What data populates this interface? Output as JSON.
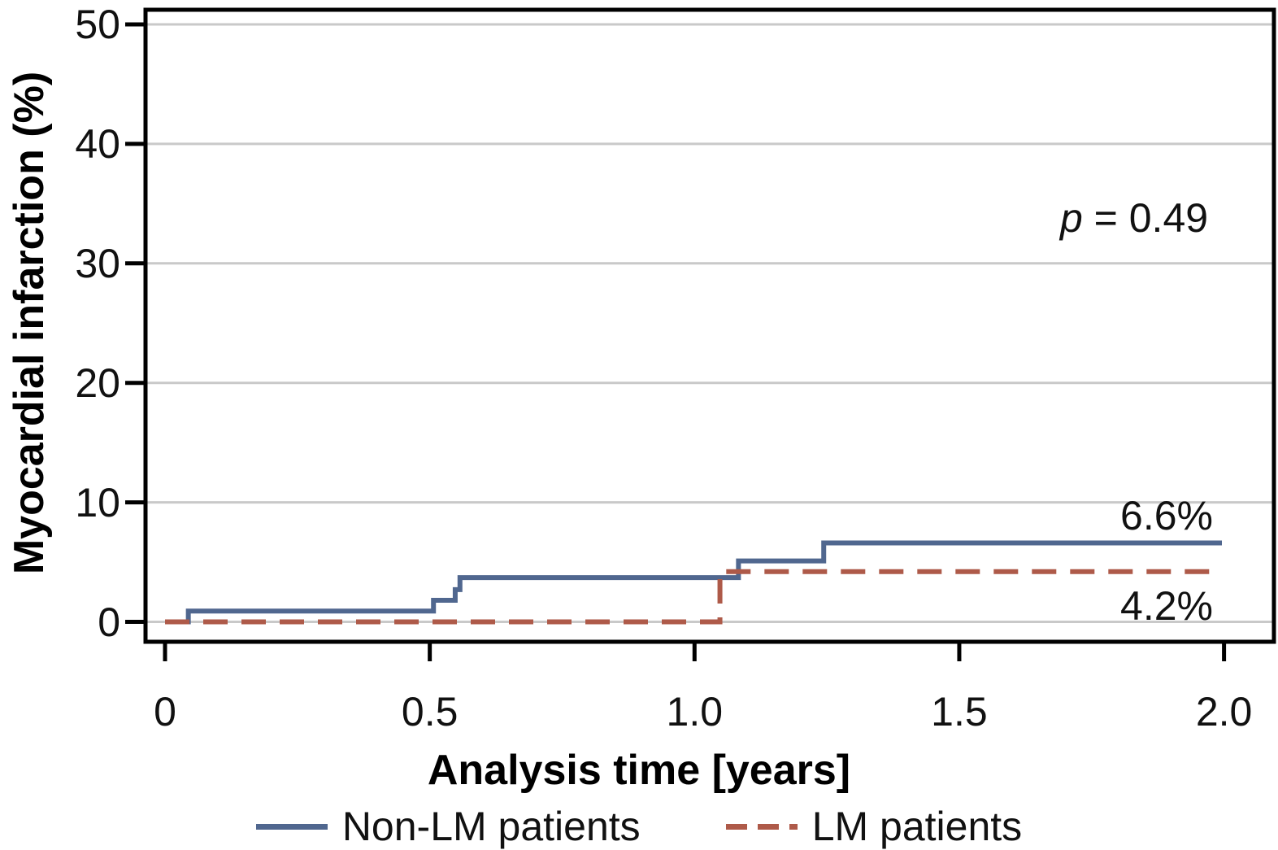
{
  "chart_data": {
    "type": "line",
    "variant": "kaplan-meier-step",
    "title": "",
    "xlabel": "Analysis time [years]",
    "ylabel": "Myocardial infarction (%)",
    "xlim": [
      0,
      2
    ],
    "ylim": [
      0,
      50
    ],
    "grid": true,
    "framed": true,
    "legend_position": "bottom",
    "x_tick_values": [
      0,
      0.5,
      1.0,
      1.5,
      2.0
    ],
    "x_tick_labels": [
      "0",
      "0.5",
      "1.0",
      "1.5",
      "2.0"
    ],
    "y_tick_values": [
      0,
      10,
      20,
      30,
      40,
      50
    ],
    "y_tick_labels": [
      "0",
      "10",
      "20",
      "30",
      "40",
      "50"
    ],
    "series": [
      {
        "name": "Non-LM patients",
        "color": "#50678f",
        "line_style": "solid",
        "end_value_pct": 6.6,
        "points": [
          [
            0,
            0
          ],
          [
            0.044,
            0
          ],
          [
            0.044,
            0.9
          ],
          [
            0.507,
            0.9
          ],
          [
            0.507,
            1.8
          ],
          [
            0.548,
            1.8
          ],
          [
            0.548,
            2.7
          ],
          [
            0.557,
            2.7
          ],
          [
            0.557,
            3.7
          ],
          [
            1.083,
            3.7
          ],
          [
            1.083,
            5.1
          ],
          [
            1.244,
            5.1
          ],
          [
            1.244,
            6.6
          ],
          [
            1.996,
            6.6
          ]
        ]
      },
      {
        "name": "LM patients",
        "color": "#ae5a49",
        "line_style": "dashed",
        "end_value_pct": 4.2,
        "points": [
          [
            0,
            0
          ],
          [
            1.048,
            0
          ],
          [
            1.048,
            4.2
          ],
          [
            1.996,
            4.2
          ]
        ]
      }
    ],
    "annotations": [
      {
        "text_italic": "p",
        "text_rest": " = 0.49",
        "x": 1.83,
        "y": 33.8
      }
    ],
    "end_labels": [
      {
        "text": "6.6%",
        "series": "Non-LM patients"
      },
      {
        "text": "4.2%",
        "series": "LM patients"
      }
    ],
    "colors": {
      "gridline": "#c9c9c9",
      "frame": "#000000",
      "text": "#111111"
    }
  }
}
